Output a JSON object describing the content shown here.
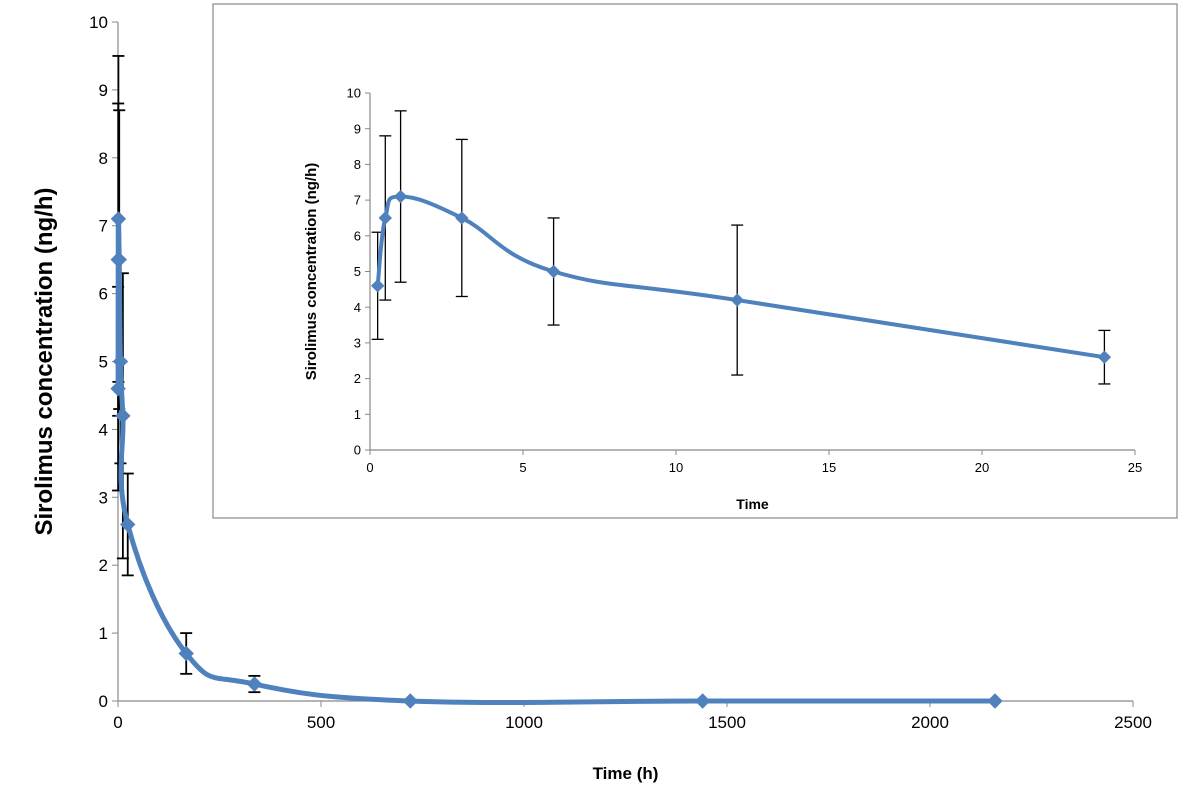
{
  "chart_data": [
    {
      "type": "line",
      "xlabel": "Time (h)",
      "ylabel": "Sirolimus concentration (ng/h)",
      "xlim": [
        0,
        2500
      ],
      "ylim": [
        0,
        10
      ],
      "x_ticks": [
        "0",
        "500",
        "1000",
        "1500",
        "2000",
        "2500"
      ],
      "y_ticks": [
        "0",
        "1",
        "2",
        "3",
        "4",
        "5",
        "6",
        "7",
        "8",
        "9",
        "10"
      ],
      "grid": false,
      "legend": "none",
      "series": [
        {
          "color": "#4f81bd",
          "x": [
            0.25,
            0.5,
            1,
            3,
            6,
            12,
            24,
            168,
            336,
            720,
            1440,
            2160
          ],
          "y": [
            4.6,
            6.5,
            7.1,
            6.5,
            5.0,
            4.2,
            2.6,
            0.7,
            0.25,
            0.0,
            0.0,
            0.0
          ],
          "error": [
            1.5,
            2.3,
            2.4,
            2.2,
            1.5,
            2.1,
            0.75,
            0.3,
            0.12,
            0,
            0,
            0
          ]
        }
      ]
    },
    {
      "type": "line",
      "xlabel": "Time",
      "ylabel": "Sirolimus concentration (ng/h)",
      "xlim": [
        0,
        25
      ],
      "ylim": [
        0,
        10
      ],
      "x_ticks": [
        "0",
        "5",
        "10",
        "15",
        "20",
        "25"
      ],
      "y_ticks": [
        "0",
        "1",
        "2",
        "3",
        "4",
        "5",
        "6",
        "7",
        "8",
        "9",
        "10"
      ],
      "grid": false,
      "legend": "none",
      "series": [
        {
          "color": "#4f81bd",
          "x": [
            0.25,
            0.5,
            1,
            3,
            6,
            12,
            24
          ],
          "y": [
            4.6,
            6.5,
            7.1,
            6.5,
            5.0,
            4.2,
            2.6
          ],
          "error": [
            1.5,
            2.3,
            2.4,
            2.2,
            1.5,
            2.1,
            0.75
          ]
        }
      ]
    }
  ]
}
